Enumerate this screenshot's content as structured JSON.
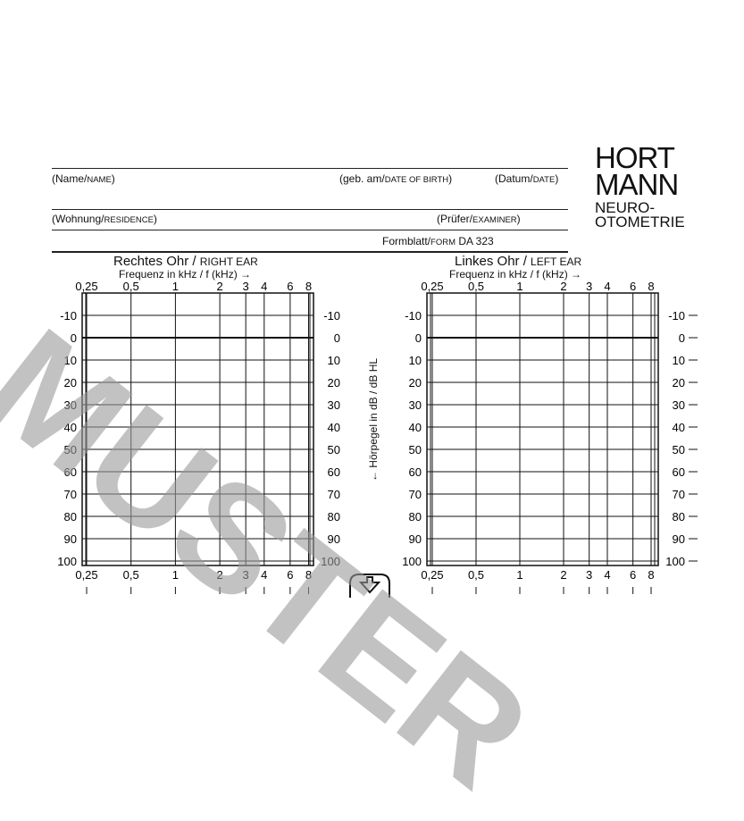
{
  "header": {
    "name_label": "(Name/",
    "name_label_en": "NAME",
    "name_close": ")",
    "dob_label": "(geb. am/",
    "dob_label_en": "DATE OF BIRTH",
    "dob_close": ")",
    "date_label": "(Datum/",
    "date_label_en": "DATE",
    "date_close": ")",
    "residence_label": "(Wohnung/",
    "residence_label_en": "RESIDENCE",
    "residence_close": ")",
    "examiner_label": "(Prüfer/",
    "examiner_label_en": "EXAMINER",
    "examiner_close": ")",
    "form_label": "Formblatt/",
    "form_label_en": "FORM",
    "form_number": " DA 323"
  },
  "logo": {
    "line1": "HORT",
    "line2": "MANN",
    "line3": "NEURO-",
    "line4": "OTOMETRIE"
  },
  "watermark": "MUSTER",
  "charts": {
    "right": {
      "title": "Rechtes Ohr / ",
      "title_en": "RIGHT EAR",
      "subtitle": "Frequenz in kHz / f (kHz) →"
    },
    "left": {
      "title": "Linkes Ohr / ",
      "title_en": "LEFT EAR",
      "subtitle": "Frequenz in kHz / f (kHz) →"
    }
  },
  "y_axis_label": "← Hörpegel in dB / dB HL",
  "chart_data": {
    "type": "table",
    "x_ticks": [
      "0,25",
      "0,5",
      "1",
      "2",
      "3",
      "4",
      "6",
      "8"
    ],
    "x_values_khz": [
      0.25,
      0.5,
      1,
      2,
      3,
      4,
      6,
      8
    ],
    "x_scale": "log",
    "y_ticks": [
      "-10",
      "0",
      "10",
      "20",
      "30",
      "40",
      "50",
      "60",
      "70",
      "80",
      "90",
      "100"
    ],
    "y_values_db": [
      -10,
      0,
      10,
      20,
      30,
      40,
      50,
      60,
      70,
      80,
      90,
      100
    ],
    "y_inverted": true,
    "grid": true
  }
}
